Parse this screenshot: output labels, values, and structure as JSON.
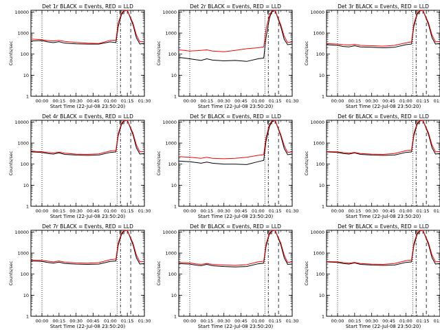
{
  "colors": {
    "events": "#000000",
    "lld": "#ff0000",
    "background": "#ffffff"
  },
  "x_ticks": [
    "00:00",
    "00:15",
    "00:30",
    "00:45",
    "01:00",
    "01:15",
    "01:30"
  ],
  "y_ticks": [
    "1",
    "10",
    "100",
    "1000",
    "10000"
  ],
  "chart_data": [
    {
      "type": "line",
      "title": "Det 1r BLACK = Events, RED = LLD",
      "xlabel": "Start Time (22-Jul-08 23:50:20)",
      "ylabel": "Counts/sec",
      "yscale": "log",
      "ylim": [
        1,
        12000
      ],
      "x": [
        "23:50:20",
        "23:55",
        "00:00",
        "00:05",
        "00:10",
        "00:15",
        "00:20",
        "00:30",
        "00:40",
        "00:50",
        "01:00",
        "01:05",
        "01:07",
        "01:10",
        "01:12",
        "01:15",
        "01:20",
        "01:23",
        "01:26",
        "01:30"
      ],
      "series": [
        {
          "values": [
            420,
            430,
            440,
            380,
            350,
            390,
            330,
            310,
            300,
            300,
            380,
            350,
            2000,
            8000,
            11000,
            12000,
            2500,
            600,
            300,
            330
          ]
        },
        {
          "values": [
            520,
            500,
            480,
            440,
            420,
            450,
            400,
            360,
            330,
            320,
            450,
            460,
            3000,
            9000,
            11500,
            12000,
            3000,
            800,
            380,
            400
          ]
        }
      ]
    },
    {
      "type": "line",
      "title": "Det 2r BLACK = Events, RED = LLD",
      "xlabel": "Start Time (22-Jul-08 23:50:20)",
      "ylabel": "Counts/sec",
      "yscale": "log",
      "ylim": [
        1,
        12000
      ],
      "x": [
        "23:50:20",
        "23:55",
        "00:00",
        "00:05",
        "00:10",
        "00:15",
        "00:20",
        "00:30",
        "00:40",
        "00:50",
        "01:00",
        "01:05",
        "01:07",
        "01:10",
        "01:12",
        "01:15",
        "01:20",
        "01:23",
        "01:26",
        "01:30"
      ],
      "series": [
        {
          "values": [
            70,
            65,
            60,
            55,
            50,
            60,
            52,
            48,
            50,
            45,
            60,
            65,
            600,
            5000,
            10000,
            12000,
            2000,
            500,
            280,
            300
          ]
        },
        {
          "values": [
            160,
            150,
            140,
            145,
            150,
            160,
            140,
            130,
            150,
            180,
            200,
            220,
            1500,
            7000,
            11000,
            12000,
            2500,
            700,
            350,
            380
          ]
        }
      ]
    },
    {
      "type": "line",
      "title": "Det 3r BLACK = Events, RED = LLD",
      "xlabel": "Start Time (22-Jul-08 23:50:20)",
      "ylabel": "Counts/sec",
      "yscale": "log",
      "ylim": [
        1,
        12000
      ],
      "x": [
        "23:50:20",
        "23:55",
        "00:00",
        "00:05",
        "00:10",
        "00:15",
        "00:20",
        "00:30",
        "00:40",
        "00:50",
        "01:00",
        "01:05",
        "01:07",
        "01:10",
        "01:12",
        "01:15",
        "01:20",
        "01:23",
        "01:26",
        "01:30"
      ],
      "series": [
        {
          "values": [
            280,
            270,
            260,
            230,
            220,
            250,
            220,
            210,
            200,
            210,
            280,
            300,
            2000,
            8000,
            11000,
            12000,
            2500,
            600,
            300,
            320
          ]
        },
        {
          "values": [
            320,
            310,
            300,
            280,
            270,
            290,
            260,
            250,
            240,
            260,
            340,
            380,
            2600,
            9000,
            11500,
            12000,
            3000,
            800,
            380,
            400
          ]
        }
      ]
    },
    {
      "type": "line",
      "title": "Det 4r BLACK = Events, RED = LLD",
      "xlabel": "Start Time (22-Jul-08 23:50:20)",
      "ylabel": "Counts/sec",
      "yscale": "log",
      "ylim": [
        1,
        12000
      ],
      "x": [
        "23:50:20",
        "23:55",
        "00:00",
        "00:05",
        "00:10",
        "00:15",
        "00:20",
        "00:30",
        "00:40",
        "00:50",
        "01:00",
        "01:05",
        "01:07",
        "01:10",
        "01:12",
        "01:15",
        "01:20",
        "01:23",
        "01:26",
        "01:30"
      ],
      "series": [
        {
          "values": [
            380,
            370,
            360,
            320,
            300,
            340,
            290,
            270,
            260,
            270,
            360,
            380,
            2200,
            8000,
            11000,
            12000,
            2500,
            600,
            300,
            320
          ]
        },
        {
          "values": [
            420,
            400,
            390,
            360,
            340,
            370,
            330,
            300,
            290,
            310,
            420,
            450,
            2800,
            9000,
            11500,
            12000,
            3000,
            800,
            380,
            400
          ]
        }
      ]
    },
    {
      "type": "line",
      "title": "Det 5r BLACK = Events, RED = LLD",
      "xlabel": "Start Time (22-Jul-08 23:50:20)",
      "ylabel": "Counts/sec",
      "yscale": "log",
      "ylim": [
        1,
        12000
      ],
      "x": [
        "23:50:20",
        "23:55",
        "00:00",
        "00:05",
        "00:10",
        "00:15",
        "00:20",
        "00:30",
        "00:40",
        "00:50",
        "01:00",
        "01:05",
        "01:07",
        "01:10",
        "01:12",
        "01:15",
        "01:20",
        "01:23",
        "01:26",
        "01:30"
      ],
      "series": [
        {
          "values": [
            140,
            135,
            130,
            120,
            110,
            125,
            110,
            100,
            100,
            95,
            130,
            150,
            1200,
            6000,
            10000,
            12000,
            2200,
            550,
            280,
            300
          ]
        },
        {
          "values": [
            230,
            220,
            210,
            200,
            190,
            210,
            190,
            180,
            190,
            210,
            260,
            280,
            1800,
            7500,
            11000,
            12000,
            2600,
            750,
            360,
            380
          ]
        }
      ]
    },
    {
      "type": "line",
      "title": "Det 6r BLACK = Events, RED = LLD",
      "xlabel": "Start Time (22-Jul-08 23:50:20)",
      "ylabel": "Counts/sec",
      "yscale": "log",
      "ylim": [
        1,
        12000
      ],
      "x": [
        "23:50:20",
        "23:55",
        "00:00",
        "00:05",
        "00:10",
        "00:15",
        "00:20",
        "00:30",
        "00:40",
        "00:50",
        "01:00",
        "01:05",
        "01:07",
        "01:10",
        "01:12",
        "01:15",
        "01:20",
        "01:23",
        "01:26",
        "01:30"
      ],
      "series": [
        {
          "values": [
            380,
            370,
            360,
            320,
            300,
            340,
            290,
            270,
            260,
            270,
            360,
            380,
            2200,
            8000,
            11000,
            12000,
            2500,
            600,
            300,
            320
          ]
        },
        {
          "values": [
            400,
            390,
            380,
            350,
            330,
            360,
            320,
            300,
            290,
            320,
            430,
            470,
            2800,
            9000,
            11500,
            12000,
            3000,
            800,
            380,
            400
          ]
        }
      ]
    },
    {
      "type": "line",
      "title": "Det 7r BLACK = Events, RED = LLD",
      "xlabel": "Start Time (22-Jul-08 23:50:20)",
      "ylabel": "Counts/sec",
      "yscale": "log",
      "ylim": [
        1,
        12000
      ],
      "x": [
        "23:50:20",
        "23:55",
        "00:00",
        "00:05",
        "00:10",
        "00:15",
        "00:20",
        "00:30",
        "00:40",
        "00:50",
        "01:00",
        "01:05",
        "01:07",
        "01:10",
        "01:12",
        "01:15",
        "01:20",
        "01:23",
        "01:26",
        "01:30"
      ],
      "series": [
        {
          "values": [
            420,
            410,
            400,
            360,
            330,
            370,
            320,
            300,
            290,
            300,
            400,
            420,
            2300,
            8000,
            11000,
            12000,
            2500,
            600,
            300,
            320
          ]
        },
        {
          "values": [
            470,
            460,
            450,
            410,
            380,
            420,
            370,
            340,
            330,
            350,
            480,
            520,
            3000,
            9000,
            11500,
            12000,
            3000,
            800,
            380,
            400
          ]
        }
      ]
    },
    {
      "type": "line",
      "title": "Det 8r BLACK = Events, RED = LLD",
      "xlabel": "Start Time (22-Jul-08 23:50:20)",
      "ylabel": "Counts/sec",
      "yscale": "log",
      "ylim": [
        1,
        12000
      ],
      "x": [
        "23:50:20",
        "23:55",
        "00:00",
        "00:05",
        "00:10",
        "00:15",
        "00:20",
        "00:30",
        "00:40",
        "00:50",
        "01:00",
        "01:05",
        "01:07",
        "01:10",
        "01:12",
        "01:15",
        "01:20",
        "01:23",
        "01:26",
        "01:30"
      ],
      "series": [
        {
          "values": [
            320,
            310,
            300,
            270,
            250,
            290,
            250,
            230,
            220,
            230,
            310,
            330,
            2000,
            8000,
            11000,
            12000,
            2500,
            600,
            290,
            300
          ]
        },
        {
          "values": [
            360,
            350,
            340,
            310,
            290,
            320,
            290,
            270,
            260,
            280,
            380,
            410,
            2600,
            9000,
            11500,
            12000,
            3000,
            800,
            360,
            380
          ]
        }
      ]
    },
    {
      "type": "line",
      "title": "Det 9r BLACK = Events, RED = LLD",
      "xlabel": "Start Time (22-Jul-08 23:50:20)",
      "ylabel": "Counts/sec",
      "yscale": "log",
      "ylim": [
        1,
        12000
      ],
      "x": [
        "23:50:20",
        "23:55",
        "00:00",
        "00:05",
        "00:10",
        "00:15",
        "00:20",
        "00:30",
        "00:40",
        "00:50",
        "01:00",
        "01:05",
        "01:07",
        "01:10",
        "01:12",
        "01:15",
        "01:20",
        "01:23",
        "01:26",
        "01:30"
      ],
      "series": [
        {
          "values": [
            380,
            370,
            360,
            320,
            300,
            340,
            290,
            270,
            260,
            270,
            360,
            380,
            2200,
            8000,
            11000,
            12000,
            2500,
            600,
            300,
            320
          ]
        },
        {
          "values": [
            400,
            390,
            380,
            350,
            330,
            360,
            320,
            300,
            290,
            320,
            430,
            470,
            2800,
            9000,
            11500,
            12000,
            3000,
            800,
            380,
            400
          ]
        }
      ]
    }
  ]
}
